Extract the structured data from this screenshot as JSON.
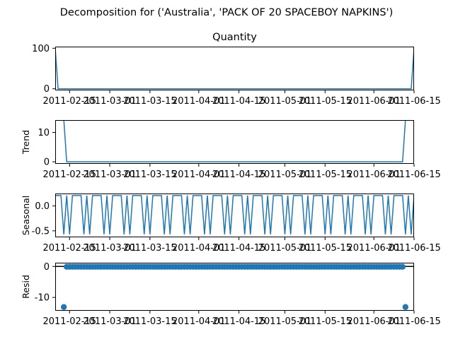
{
  "figure": {
    "suptitle": "Decomposition for ('Australia', 'PACK OF 20 SPACEBOY NAPKINS')"
  },
  "chart_data": [
    {
      "type": "line",
      "title": "Quantity",
      "ylabel": "",
      "color": "#1f77b4",
      "x_range": [
        "2011-02-10",
        "2011-06-15"
      ],
      "ylim": [
        -4,
        104
      ],
      "y_ticks": [
        0,
        100
      ],
      "x_tick_labels": [
        "2011-02-15",
        "2011-03-01",
        "2011-03-15",
        "2011-04-01",
        "2011-04-15",
        "2011-05-01",
        "2011-05-15",
        "2011-06-01",
        "2011-06-15"
      ],
      "points": [
        [
          "2011-02-10",
          100
        ],
        [
          "2011-02-11",
          0
        ],
        [
          "2011-06-14",
          0
        ],
        [
          "2011-06-15",
          100
        ]
      ]
    },
    {
      "type": "line",
      "title": "",
      "ylabel": "Trend",
      "color": "#1f77b4",
      "x_range": [
        "2011-02-10",
        "2011-06-15"
      ],
      "ylim": [
        -0.7,
        14.2
      ],
      "y_ticks": [
        0,
        10
      ],
      "x_tick_labels": [
        "2011-02-15",
        "2011-03-01",
        "2011-03-15",
        "2011-04-01",
        "2011-04-15",
        "2011-05-01",
        "2011-05-15",
        "2011-06-01",
        "2011-06-15"
      ],
      "points": [
        [
          "2011-02-13",
          14.3
        ],
        [
          "2011-02-14",
          0
        ],
        [
          "2011-06-11",
          0
        ],
        [
          "2011-06-12",
          14.3
        ]
      ]
    },
    {
      "type": "line",
      "title": "",
      "ylabel": "Seasonal",
      "color": "#1f77b4",
      "x_range": [
        "2011-02-10",
        "2011-06-15"
      ],
      "ylim": [
        -0.63,
        0.25
      ],
      "y_ticks": [
        -0.5,
        0.0
      ],
      "x_tick_labels": [
        "2011-02-15",
        "2011-03-01",
        "2011-03-15",
        "2011-04-01",
        "2011-04-15",
        "2011-05-01",
        "2011-05-15",
        "2011-06-01",
        "2011-06-15"
      ],
      "period_days": 7,
      "weekly_pattern": [
        0.21,
        0.21,
        0.21,
        -0.57,
        0.21,
        -0.57,
        0.21
      ]
    },
    {
      "type": "scatter",
      "title": "",
      "ylabel": "Resid",
      "color": "#1f77b4",
      "x_range": [
        "2011-02-10",
        "2011-06-15"
      ],
      "ylim": [
        -14.3,
        1.2
      ],
      "y_ticks": [
        -10,
        0
      ],
      "x_tick_labels": [
        "2011-02-15",
        "2011-03-01",
        "2011-03-15",
        "2011-04-01",
        "2011-04-15",
        "2011-05-01",
        "2011-05-15",
        "2011-06-01",
        "2011-06-15"
      ],
      "baseline": 0,
      "outliers": [
        [
          "2011-02-13",
          -13.1
        ],
        [
          "2011-06-12",
          -13.1
        ]
      ],
      "range_start": "2011-02-13",
      "range_end": "2011-06-12",
      "near_zero_value": -0.1
    }
  ]
}
